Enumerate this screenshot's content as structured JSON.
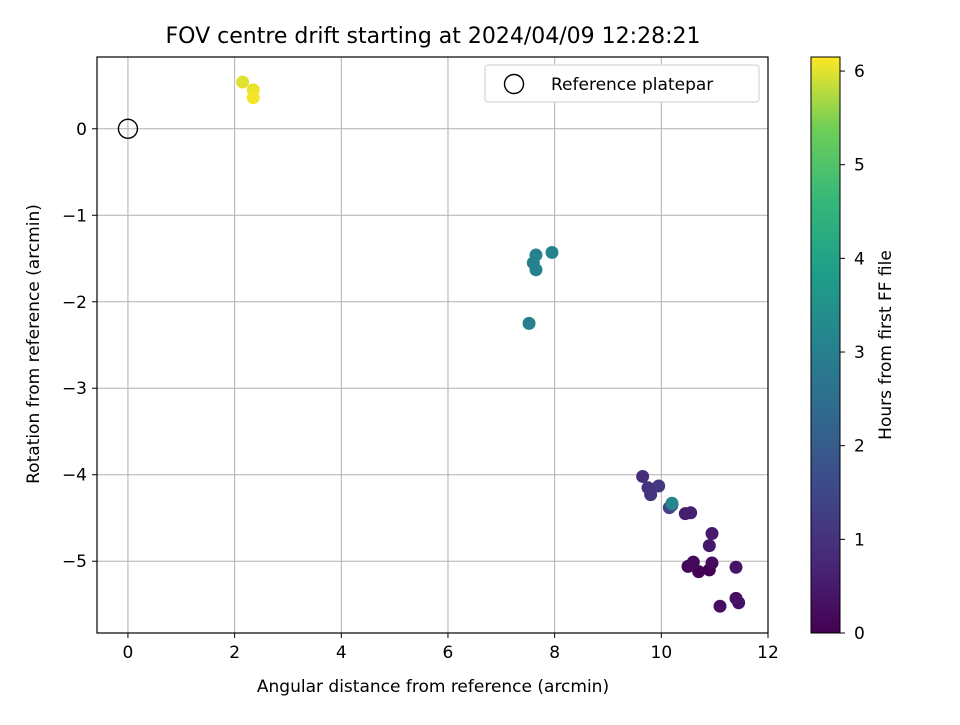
{
  "chart_data": {
    "type": "scatter",
    "title": "FOV centre drift starting at 2024/04/09 12:28:21",
    "xlabel": "Angular distance from reference (arcmin)",
    "ylabel": "Rotation from reference (arcmin)",
    "xlim": [
      -0.58,
      12.0
    ],
    "ylim": [
      -5.83,
      0.83
    ],
    "xticks": [
      0,
      2,
      4,
      6,
      8,
      10,
      12
    ],
    "yticks": [
      -5,
      -4,
      -3,
      -2,
      -1,
      0
    ],
    "grid": true,
    "legend": {
      "placement": "top-right",
      "entries": [
        "Reference platepar"
      ]
    },
    "reference_point": {
      "x": 0,
      "y": 0,
      "marker": "open-circle",
      "edge_color": "#000000"
    },
    "colorbar": {
      "label": "Hours from first FF file",
      "min": 0,
      "max": 6.15,
      "ticks": [
        0,
        1,
        2,
        3,
        4,
        5,
        6
      ],
      "colormap": "viridis"
    },
    "points": [
      {
        "x": 10.9,
        "y": -5.1,
        "c": 0.0
      },
      {
        "x": 10.7,
        "y": -5.12,
        "c": 0.05
      },
      {
        "x": 10.5,
        "y": -5.06,
        "c": 0.1
      },
      {
        "x": 10.6,
        "y": -5.01,
        "c": 0.15
      },
      {
        "x": 10.95,
        "y": -5.02,
        "c": 0.2
      },
      {
        "x": 11.1,
        "y": -5.52,
        "c": 0.25
      },
      {
        "x": 11.4,
        "y": -5.43,
        "c": 0.3
      },
      {
        "x": 11.45,
        "y": -5.48,
        "c": 0.35
      },
      {
        "x": 11.4,
        "y": -5.07,
        "c": 0.4
      },
      {
        "x": 10.9,
        "y": -4.82,
        "c": 0.45
      },
      {
        "x": 10.95,
        "y": -4.68,
        "c": 0.5
      },
      {
        "x": 10.45,
        "y": -4.45,
        "c": 0.55
      },
      {
        "x": 10.55,
        "y": -4.44,
        "c": 0.6
      },
      {
        "x": 9.65,
        "y": -4.02,
        "c": 0.9
      },
      {
        "x": 9.75,
        "y": -4.15,
        "c": 1.0
      },
      {
        "x": 9.8,
        "y": -4.23,
        "c": 1.05
      },
      {
        "x": 9.95,
        "y": -4.13,
        "c": 1.1
      },
      {
        "x": 10.15,
        "y": -4.38,
        "c": 1.4
      },
      {
        "x": 10.2,
        "y": -4.35,
        "c": 1.8
      },
      {
        "x": 10.2,
        "y": -4.33,
        "c": 3.2
      },
      {
        "x": 7.52,
        "y": -2.25,
        "c": 3.0
      },
      {
        "x": 7.6,
        "y": -1.55,
        "c": 3.0
      },
      {
        "x": 7.65,
        "y": -1.46,
        "c": 3.05
      },
      {
        "x": 7.65,
        "y": -1.63,
        "c": 3.05
      },
      {
        "x": 7.95,
        "y": -1.43,
        "c": 3.1
      },
      {
        "x": 2.15,
        "y": 0.54,
        "c": 6.0
      },
      {
        "x": 2.35,
        "y": 0.45,
        "c": 6.05
      },
      {
        "x": 2.35,
        "y": 0.36,
        "c": 6.1
      }
    ]
  }
}
